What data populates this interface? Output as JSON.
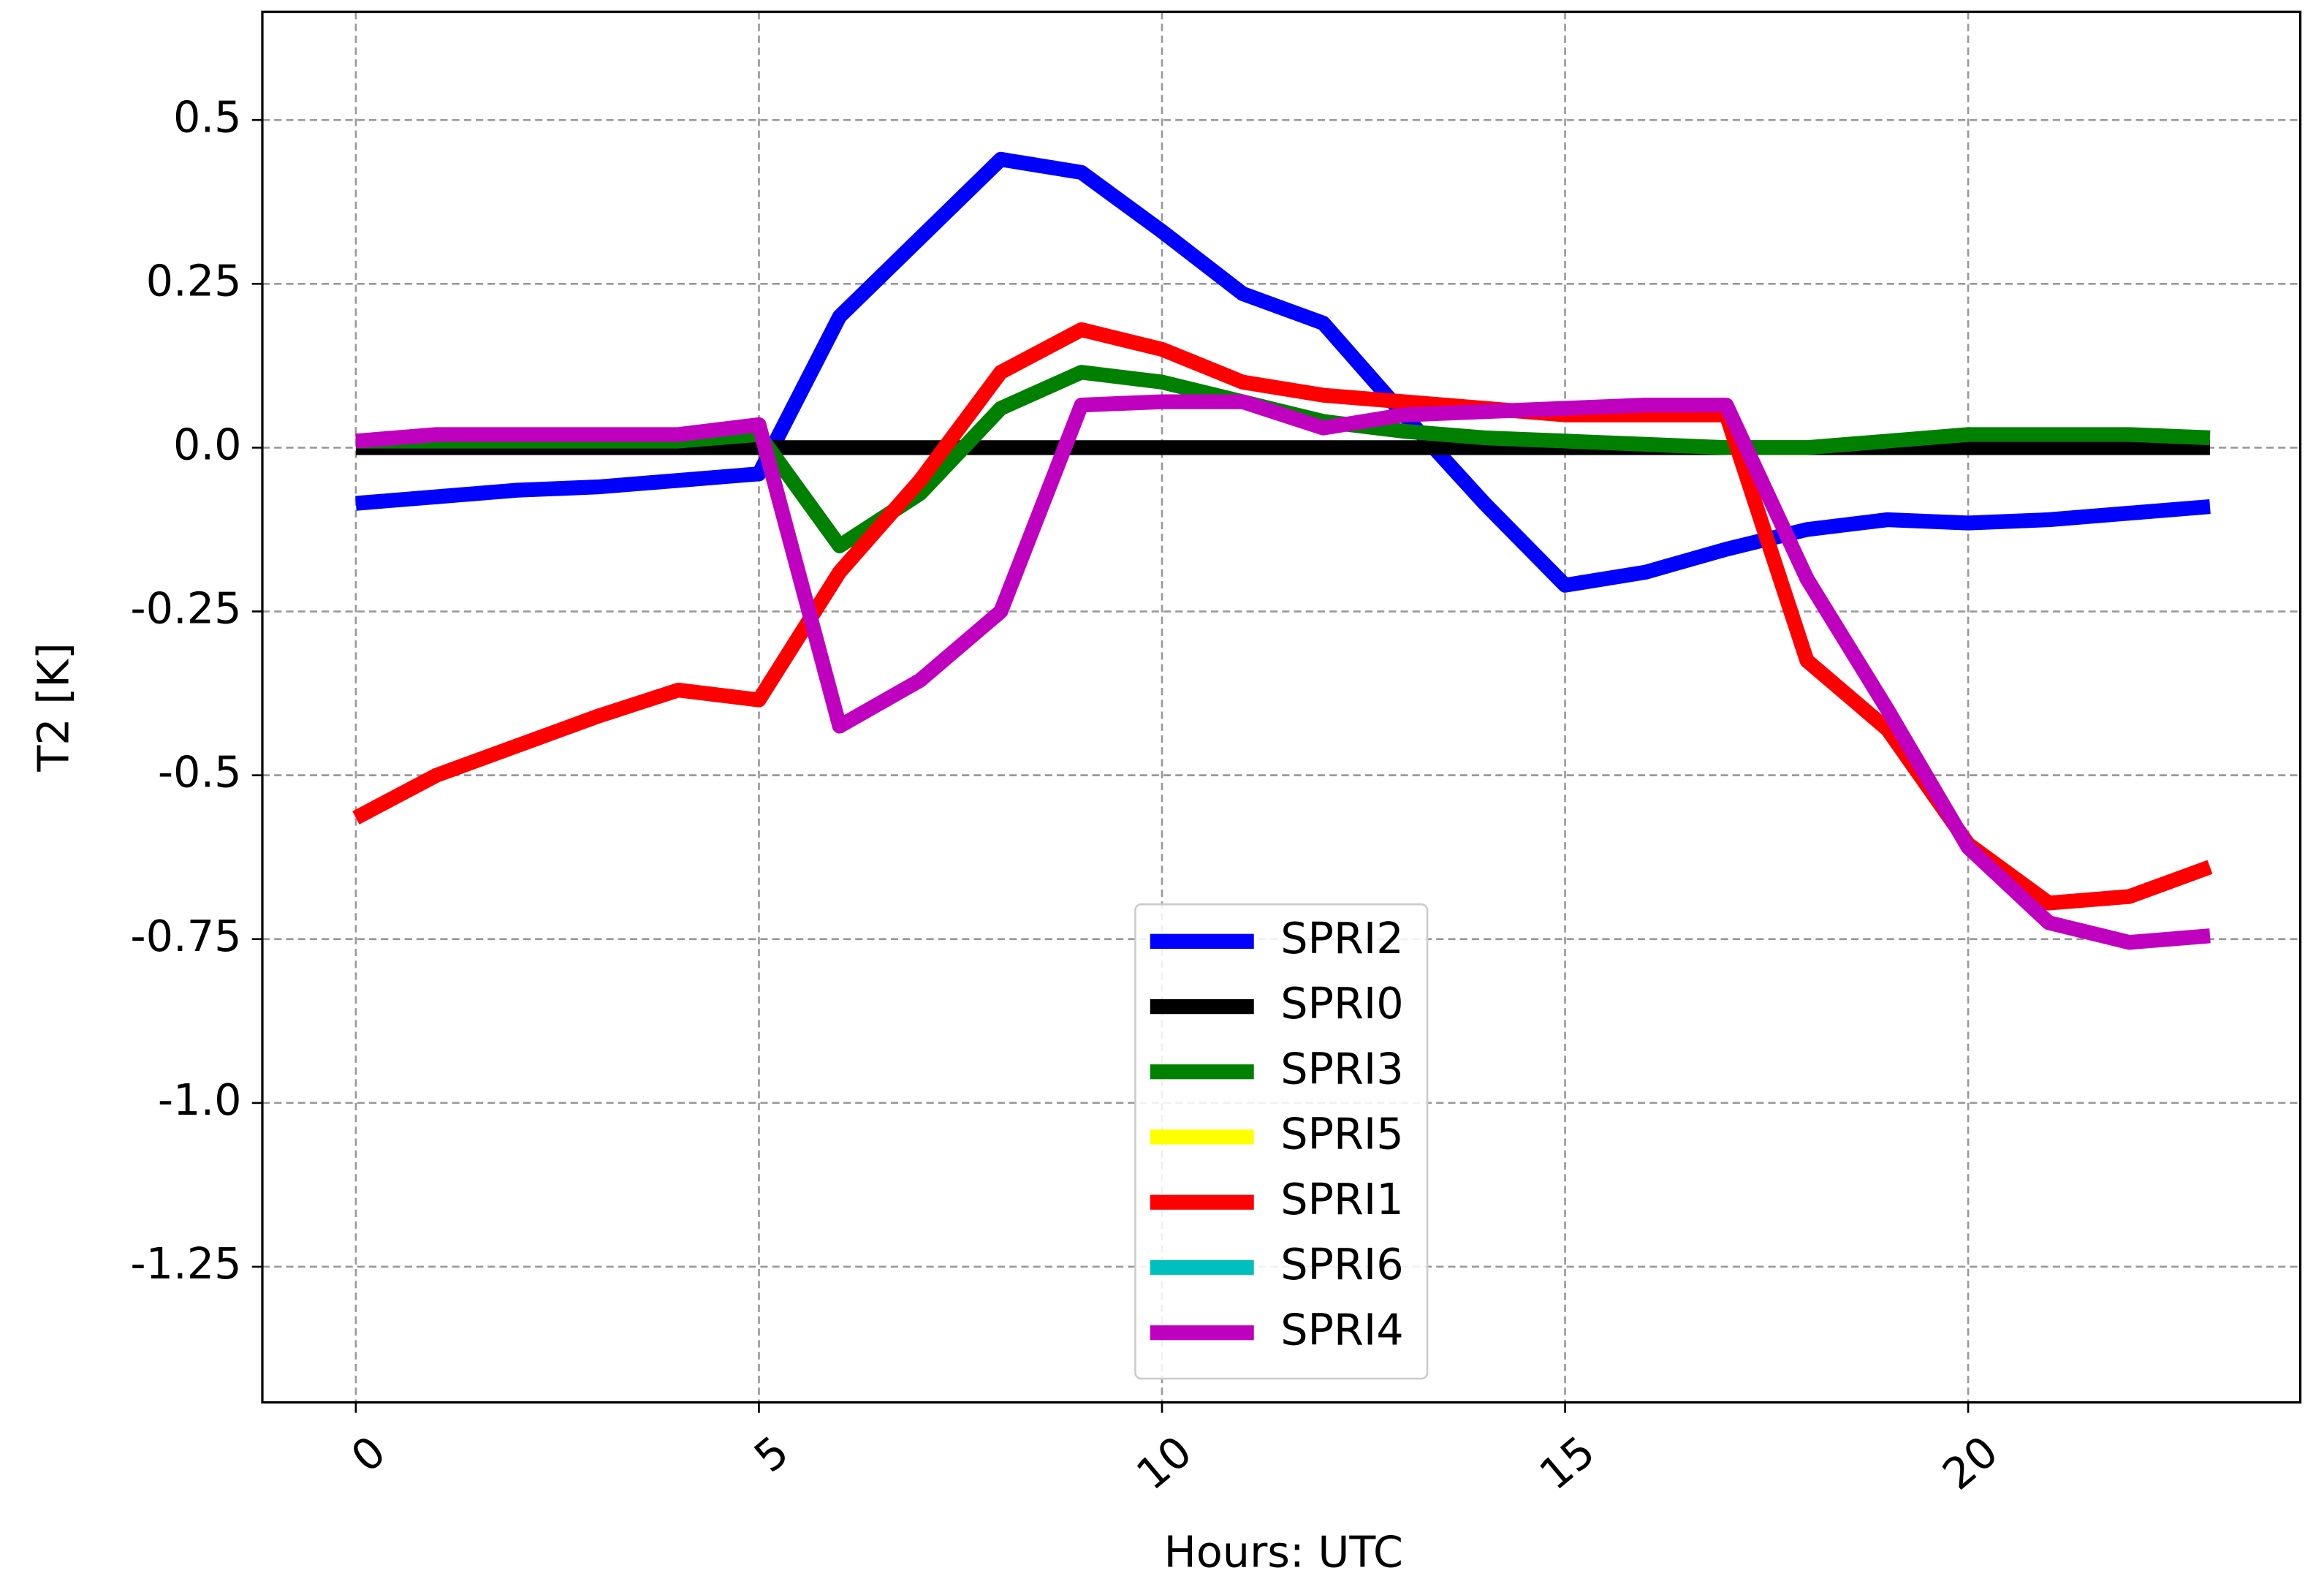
{
  "chart_data": {
    "type": "line",
    "xlabel": "Hours: UTC",
    "ylabel": "T2 [K]",
    "x": [
      0,
      1,
      2,
      3,
      4,
      5,
      6,
      7,
      8,
      9,
      10,
      11,
      12,
      13,
      14,
      15,
      16,
      17,
      18,
      19,
      20,
      21,
      22,
      23
    ],
    "xlim": [
      -1.16,
      24.12
    ],
    "ylim": [
      -1.457,
      0.665
    ],
    "xticks": [
      0,
      5,
      10,
      15,
      20
    ],
    "yticks": [
      0.5,
      0.25,
      {
        "value": 0,
        "label": "0.0"
      },
      -0.25,
      {
        "value": -0.5,
        "label": "-0.5"
      },
      -0.75,
      {
        "value": -1,
        "label": "-1.0"
      },
      -1.25
    ],
    "grid": true,
    "legend": "lower center",
    "series": [
      {
        "name": "SPRI2",
        "color": "#0000ff",
        "values": [
          -0.085,
          -0.075,
          -0.065,
          -0.06,
          -0.05,
          -0.04,
          0.2,
          0.32,
          0.44,
          0.42,
          0.33,
          0.235,
          0.19,
          0.05,
          -0.085,
          -0.21,
          -0.19,
          -0.155,
          -0.125,
          -0.11,
          -0.115,
          -0.11,
          -0.1,
          -0.09
        ]
      },
      {
        "name": "SPRI0",
        "color": "#000000",
        "values": [
          0,
          0,
          0,
          0,
          0,
          0,
          0,
          0,
          0,
          0,
          0,
          0,
          0,
          0,
          0,
          0,
          0,
          0,
          0,
          0,
          0,
          0,
          0,
          0
        ]
      },
      {
        "name": "SPRI3",
        "color": "#008000",
        "values": [
          0.01,
          0.01,
          0.01,
          0.01,
          0.01,
          0.02,
          -0.15,
          -0.07,
          0.06,
          0.115,
          0.1,
          0.07,
          0.04,
          0.025,
          0.015,
          0.01,
          0.005,
          0,
          0,
          0.01,
          0.02,
          0.02,
          0.02,
          0.015
        ]
      },
      {
        "name": "SPRI5",
        "color": "#ffff00",
        "values": [
          null,
          null,
          null,
          null,
          null,
          null,
          null,
          null,
          null,
          null,
          null,
          null,
          null,
          null,
          null,
          null,
          null,
          null,
          null,
          null,
          null,
          null,
          null,
          null
        ]
      },
      {
        "name": "SPRI1",
        "color": "#ff0000",
        "values": [
          -0.565,
          -0.5,
          -0.455,
          -0.41,
          -0.37,
          -0.385,
          -0.19,
          -0.05,
          0.115,
          0.18,
          0.15,
          0.1,
          0.08,
          0.07,
          0.06,
          0.05,
          0.05,
          0.05,
          -0.325,
          -0.43,
          -0.605,
          -0.695,
          -0.685,
          -0.64
        ]
      },
      {
        "name": "SPRI6",
        "color": "#00bfbf",
        "values": [
          null,
          null,
          null,
          null,
          null,
          null,
          null,
          null,
          null,
          null,
          null,
          null,
          null,
          null,
          null,
          null,
          null,
          null,
          null,
          null,
          null,
          null,
          null,
          null
        ]
      },
      {
        "name": "SPRI4",
        "color": "#bf00bf",
        "values": [
          0.01,
          0.02,
          0.02,
          0.02,
          0.02,
          0.035,
          -0.425,
          -0.355,
          -0.25,
          0.065,
          0.07,
          0.07,
          0.03,
          0.05,
          0.055,
          0.06,
          0.065,
          0.065,
          -0.2,
          -0.4,
          -0.61,
          -0.725,
          -0.755,
          -0.745
        ]
      }
    ]
  }
}
